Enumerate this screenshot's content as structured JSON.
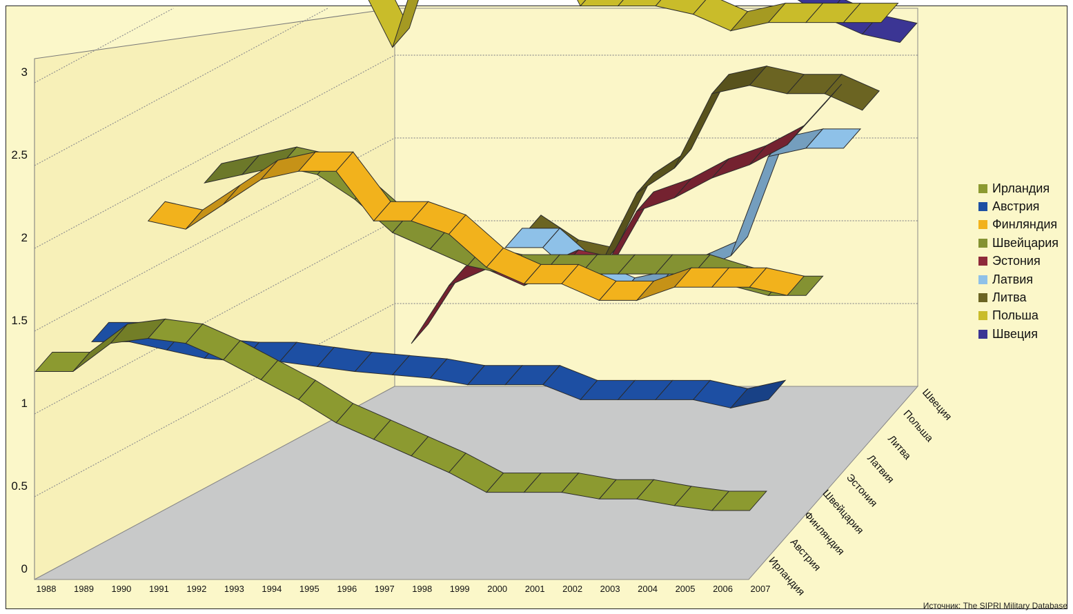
{
  "chart_data": {
    "type": "line",
    "subtype": "3d-ribbon",
    "x": [
      "1988",
      "1989",
      "1990",
      "1991",
      "1992",
      "1993",
      "1994",
      "1995",
      "1996",
      "1997",
      "1998",
      "1999",
      "2000",
      "2001",
      "2002",
      "2003",
      "2004",
      "2005",
      "2006",
      "2007"
    ],
    "yticks": [
      "0",
      "0.5",
      "1",
      "1.5",
      "2",
      "2.5",
      "3"
    ],
    "ylim": [
      0,
      3
    ],
    "depth_labels": [
      "Ирландия",
      "Австрия",
      "Финляндия",
      "Швейцария",
      "Эстония",
      "Латвия",
      "Литва",
      "Польша",
      "Швеция"
    ],
    "legend_position": "right",
    "series": [
      {
        "name": "Ирландия",
        "color": "#8c9a30",
        "values": [
          1.25,
          1.25,
          1.42,
          1.45,
          1.42,
          1.32,
          1.2,
          1.08,
          0.94,
          0.84,
          0.74,
          0.64,
          0.52,
          0.52,
          0.52,
          0.48,
          0.48,
          0.44,
          0.41,
          0.41
        ]
      },
      {
        "name": "Австрия",
        "color": "#1d4fa3",
        "values": [
          null,
          1.3,
          1.3,
          1.25,
          1.2,
          1.18,
          1.18,
          1.15,
          1.12,
          1.1,
          1.08,
          1.04,
          1.04,
          1.04,
          0.95,
          0.95,
          0.95,
          0.95,
          0.9,
          0.95
        ]
      },
      {
        "name": "Финляндия",
        "color": "#f2b21c",
        "values": [
          null,
          null,
          1.9,
          1.85,
          2.0,
          2.15,
          2.2,
          2.2,
          1.9,
          1.9,
          1.82,
          1.62,
          1.52,
          1.52,
          1.42,
          1.42,
          1.5,
          1.5,
          1.5,
          1.45
        ]
      },
      {
        "name": "Швейцария",
        "color": "#849232",
        "values": [
          null,
          null,
          null,
          2.0,
          2.05,
          2.1,
          2.05,
          1.9,
          1.7,
          1.6,
          1.5,
          1.45,
          1.45,
          1.45,
          1.45,
          1.45,
          1.45,
          1.38,
          1.32,
          1.32
        ]
      },
      {
        "name": "Эстония",
        "color": "#8e2a3a",
        "values": [
          null,
          null,
          null,
          null,
          null,
          null,
          null,
          null,
          0.9,
          1.25,
          1.35,
          1.25,
          1.35,
          1.3,
          1.7,
          1.78,
          1.9,
          1.98,
          2.1,
          2.35
        ]
      },
      {
        "name": "Латвия",
        "color": "#8ec1e8",
        "values": [
          null,
          null,
          null,
          null,
          null,
          null,
          null,
          null,
          null,
          null,
          1.35,
          1.35,
          1.15,
          1.05,
          1.1,
          1.2,
          1.3,
          1.9,
          1.95,
          1.95
        ]
      },
      {
        "name": "Литва",
        "color": "#6b6422",
        "values": [
          null,
          null,
          null,
          null,
          null,
          null,
          null,
          null,
          null,
          null,
          1.3,
          1.15,
          1.1,
          1.55,
          1.7,
          2.15,
          2.2,
          2.15,
          2.15,
          2.05
        ]
      },
      {
        "name": "Польша",
        "color": "#c9bc2a",
        "values": [
          null,
          null,
          null,
          null,
          null,
          2.75,
          2.3,
          3.0,
          2.8,
          2.85,
          3.0,
          2.55,
          2.55,
          2.55,
          2.5,
          2.4,
          2.45,
          2.45,
          2.45,
          2.45
        ]
      },
      {
        "name": "Швеция",
        "color": "#3b3594",
        "values": [
          null,
          null,
          null,
          null,
          null,
          null,
          null,
          3.0,
          3.0,
          3.0,
          2.95,
          2.85,
          2.75,
          2.65,
          2.6,
          2.55,
          2.5,
          2.35,
          2.25,
          2.2
        ]
      }
    ],
    "source": "Источник: The SIPRI Military Database"
  }
}
